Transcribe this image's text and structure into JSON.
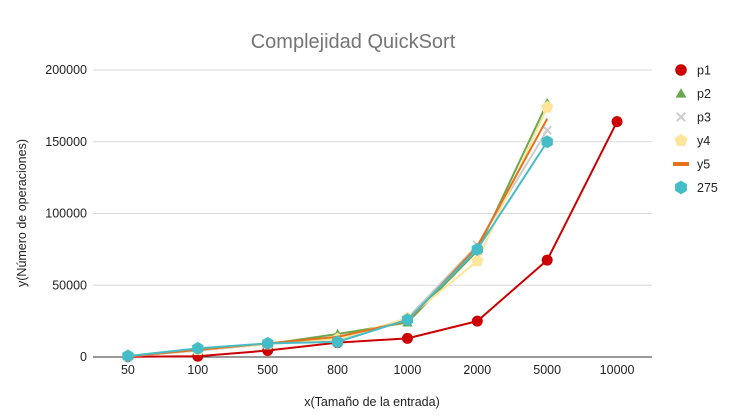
{
  "chart_data": {
    "type": "line",
    "title": "Complejidad QuickSort",
    "xlabel": "x(Tamaño de la entrada)",
    "ylabel": "y(Número de operaciones)",
    "categories": [
      "50",
      "100",
      "500",
      "800",
      "1000",
      "2000",
      "5000",
      "10000"
    ],
    "ylim": [
      0,
      200000
    ],
    "yticks": [
      "0",
      "50000",
      "100000",
      "150000",
      "200000"
    ],
    "ytick_values": [
      0,
      50000,
      100000,
      150000,
      200000
    ],
    "grid": true,
    "legend_position": "right",
    "series": [
      {
        "name": "p1",
        "color": "#cc0000",
        "marker": "circle",
        "values": [
          200,
          500,
          4500,
          10000,
          13000,
          25000,
          67500,
          164000
        ]
      },
      {
        "name": "p2",
        "color": "#6aa84f",
        "marker": "triangle",
        "values": [
          500,
          4500,
          9000,
          16000,
          24000,
          74000,
          177000,
          null
        ]
      },
      {
        "name": "p3",
        "color": "#cccccc",
        "marker": "cross",
        "values": [
          400,
          4500,
          9000,
          12000,
          27000,
          78000,
          158000,
          null
        ]
      },
      {
        "name": "y4",
        "color": "#ffe599",
        "marker": "pentagon",
        "values": [
          600,
          5000,
          9000,
          12500,
          27000,
          67000,
          174000,
          null
        ]
      },
      {
        "name": "y5",
        "color": "#e8711c",
        "marker": "line",
        "values": [
          500,
          5000,
          9500,
          14000,
          25000,
          77000,
          166000,
          null
        ]
      },
      {
        "name": "275",
        "color": "#46bdc6",
        "marker": "hexagon",
        "values": [
          700,
          6000,
          9500,
          10500,
          26000,
          75000,
          150000,
          null
        ]
      }
    ]
  }
}
